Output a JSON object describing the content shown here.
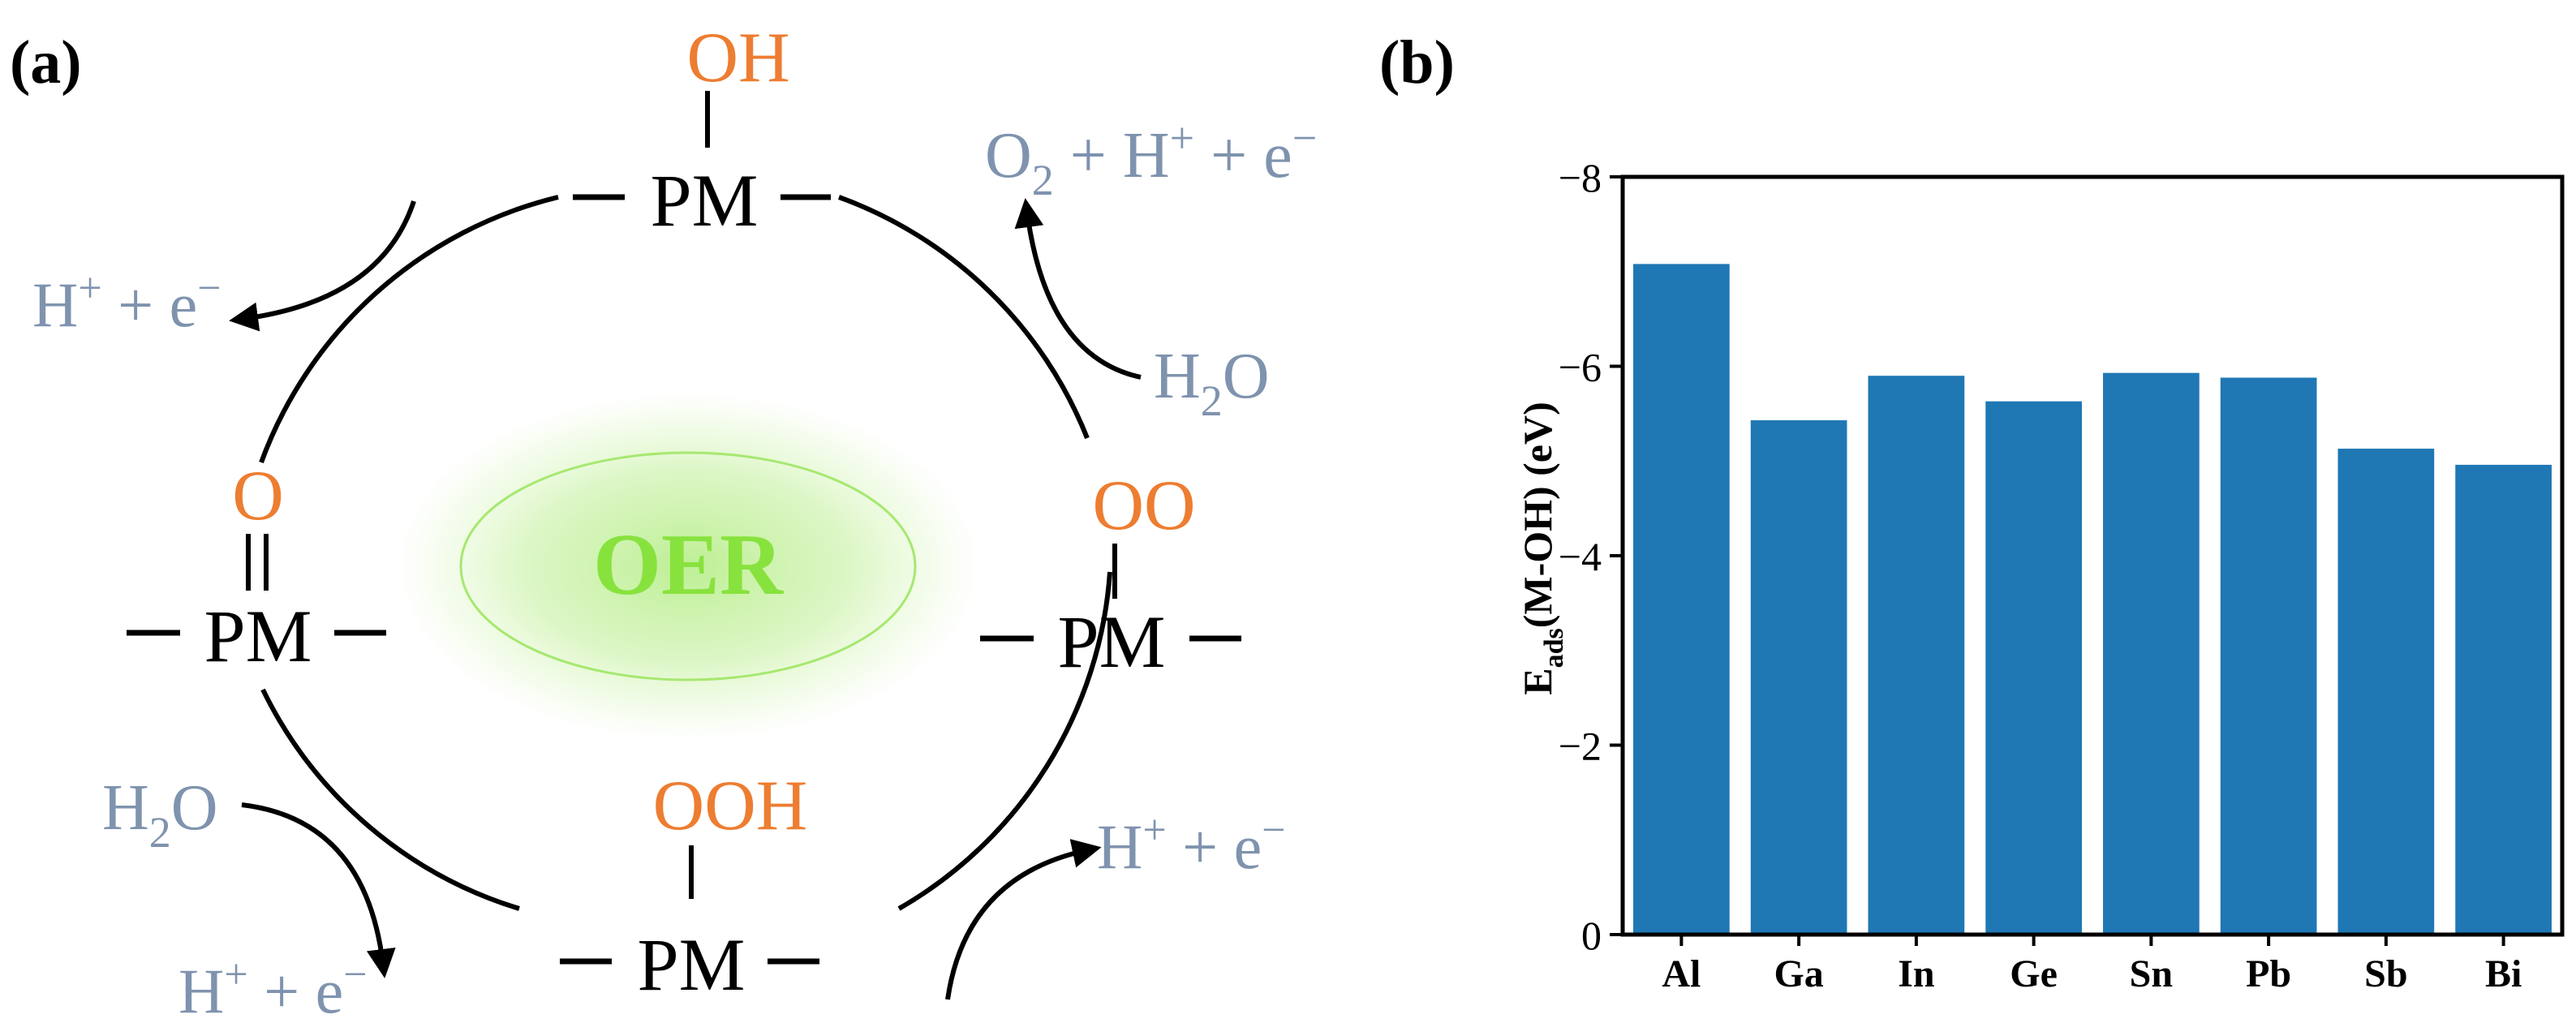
{
  "panel_a": {
    "label": "(a)",
    "center_text": "OER",
    "intermediates": {
      "top": {
        "adsorbate": "OH",
        "site": "PM"
      },
      "right": {
        "adsorbate": "OO",
        "site": "PM"
      },
      "bottom": {
        "adsorbate": "OOH",
        "site": "PM"
      },
      "left": {
        "adsorbate": "O",
        "site": "PM"
      }
    },
    "species": {
      "top_left_product": {
        "main": "H",
        "sup": "+",
        "rest": " + e",
        "sup2": "−"
      },
      "top_right_product": {
        "main": "O",
        "sub": "2",
        "rest": " + H",
        "sup": "+",
        "rest2": " + e",
        "sup2": "−"
      },
      "right_reactant": {
        "main": "H",
        "sub": "2",
        "rest": "O"
      },
      "bottom_right_product": {
        "main": "H",
        "sup": "+",
        "rest": " + e",
        "sup2": "−"
      },
      "bottom_left_reactant": {
        "main": "H",
        "sub": "2",
        "rest": "O"
      },
      "bottom_left_product": {
        "main": "H",
        "sup": "+",
        "rest": " + e",
        "sup2": "−"
      }
    },
    "colors": {
      "adsorbate": "#ED7D31",
      "species": "#7F93AE",
      "center": "#88E23E"
    }
  },
  "panel_b": {
    "label": "(b)",
    "ylabel_main": "E",
    "ylabel_sub": "ads",
    "ylabel_rest": "(M-OH) (eV)",
    "bar_color": "#1F77B4"
  },
  "chart_data": {
    "type": "bar",
    "categories": [
      "Al",
      "Ga",
      "In",
      "Ge",
      "Sn",
      "Pb",
      "Sb",
      "Bi"
    ],
    "values": [
      -7.08,
      -5.43,
      -5.9,
      -5.63,
      -5.93,
      -5.88,
      -5.13,
      -4.96
    ],
    "ylim": [
      0,
      -8
    ],
    "yticks": [
      0,
      -2,
      -4,
      -6,
      -8
    ],
    "ytick_labels": [
      "0",
      "−2",
      "−4",
      "−6",
      "−8"
    ],
    "ylabel": "Eads(M-OH) (eV)",
    "grid": false
  }
}
